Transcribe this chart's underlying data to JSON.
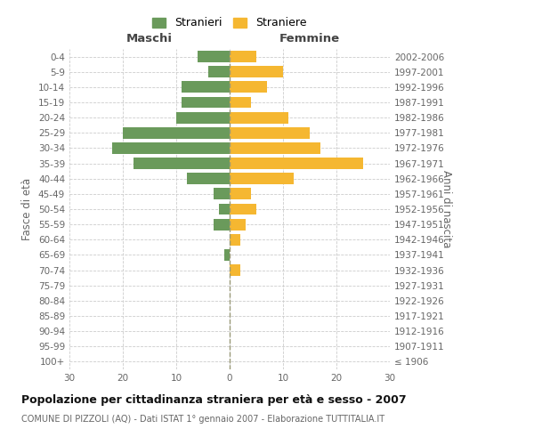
{
  "age_groups": [
    "100+",
    "95-99",
    "90-94",
    "85-89",
    "80-84",
    "75-79",
    "70-74",
    "65-69",
    "60-64",
    "55-59",
    "50-54",
    "45-49",
    "40-44",
    "35-39",
    "30-34",
    "25-29",
    "20-24",
    "15-19",
    "10-14",
    "5-9",
    "0-4"
  ],
  "birth_years": [
    "≤ 1906",
    "1907-1911",
    "1912-1916",
    "1917-1921",
    "1922-1926",
    "1927-1931",
    "1932-1936",
    "1937-1941",
    "1942-1946",
    "1947-1951",
    "1952-1956",
    "1957-1961",
    "1962-1966",
    "1967-1971",
    "1972-1976",
    "1977-1981",
    "1982-1986",
    "1987-1991",
    "1992-1996",
    "1997-2001",
    "2002-2006"
  ],
  "males": [
    0,
    0,
    0,
    0,
    0,
    0,
    0,
    1,
    0,
    3,
    2,
    3,
    8,
    18,
    22,
    20,
    10,
    9,
    9,
    4,
    6
  ],
  "females": [
    0,
    0,
    0,
    0,
    0,
    0,
    2,
    0,
    2,
    3,
    5,
    4,
    12,
    25,
    17,
    15,
    11,
    4,
    7,
    10,
    5
  ],
  "male_color": "#6a9a5b",
  "female_color": "#f5b731",
  "xlabel_left": "Maschi",
  "xlabel_right": "Femmine",
  "ylabel_left": "Fasce di età",
  "ylabel_right": "Anni di nascita",
  "xlim": 30,
  "title": "Popolazione per cittadinanza straniera per età e sesso - 2007",
  "subtitle": "COMUNE DI PIZZOLI (AQ) - Dati ISTAT 1° gennaio 2007 - Elaborazione TUTTITALIA.IT",
  "legend_male_label": "Stranieri",
  "legend_female_label": "Straniere",
  "background_color": "#ffffff",
  "grid_color": "#cccccc",
  "bar_height": 0.75
}
